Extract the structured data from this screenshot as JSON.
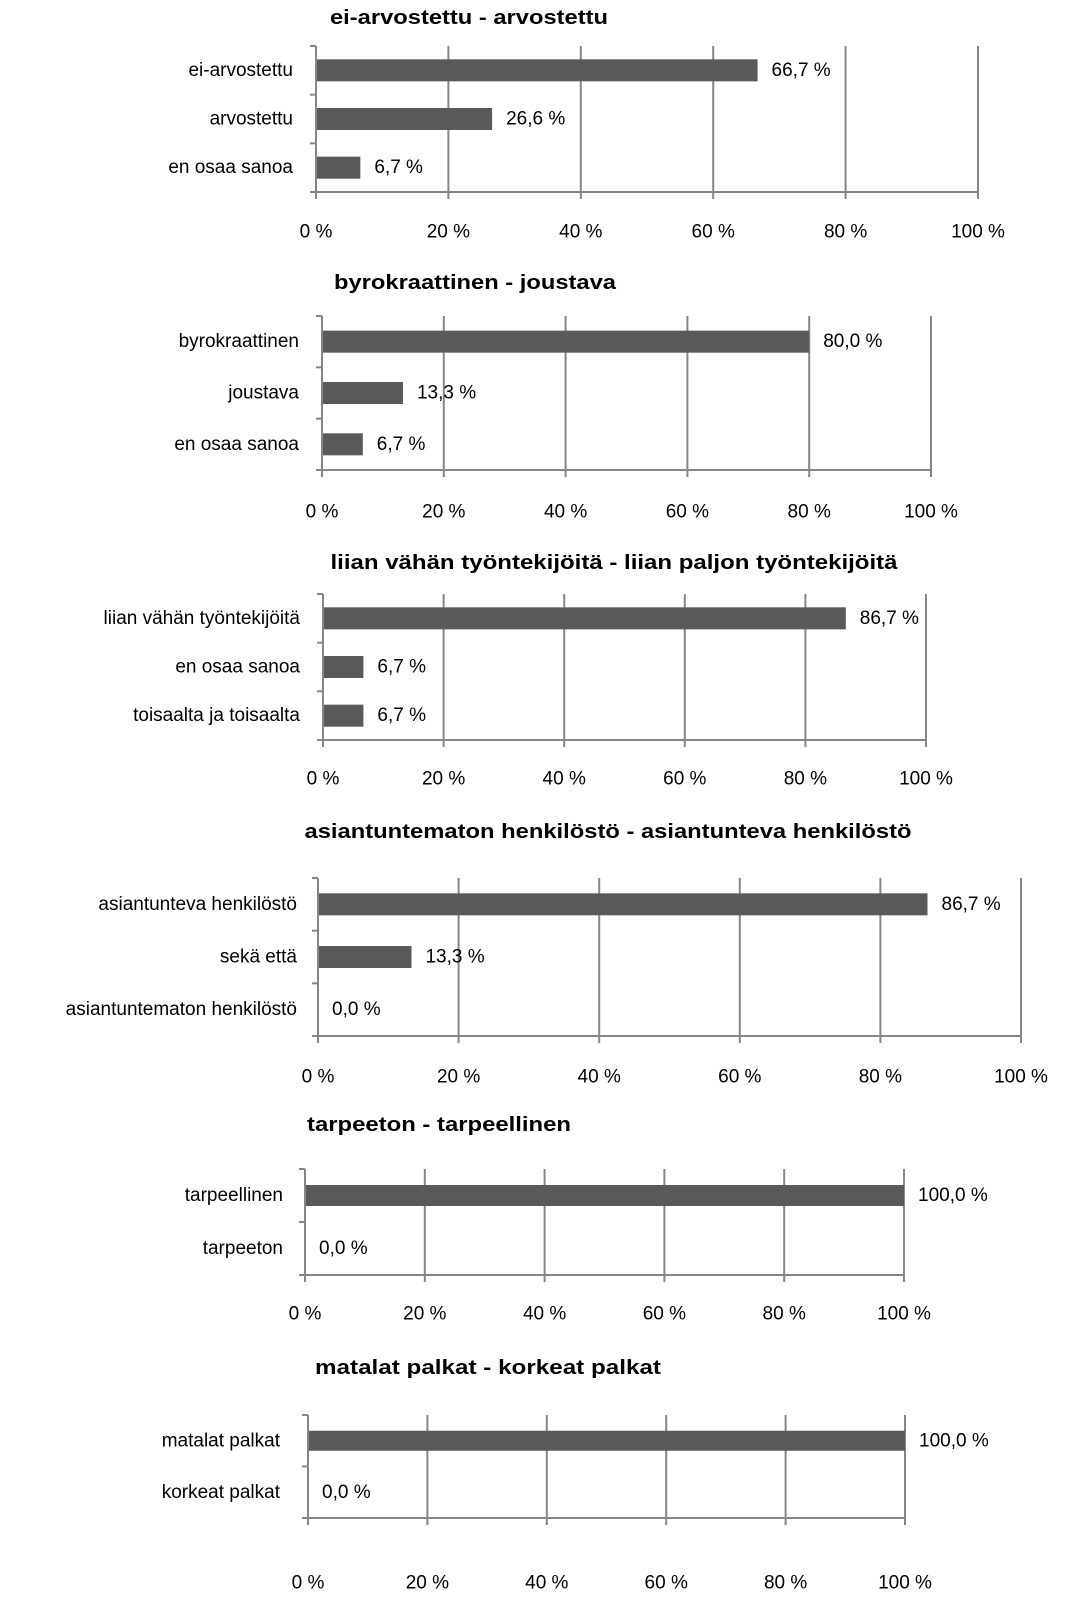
{
  "colors": {
    "bar": "#595959",
    "grid": "#868686"
  },
  "chart_data": [
    {
      "type": "bar",
      "orientation": "horizontal",
      "title": "ei-arvostettu - arvostettu",
      "categories": [
        "ei-arvostettu",
        "arvostettu",
        "en osaa sanoa"
      ],
      "values": [
        66.7,
        26.6,
        6.7
      ],
      "data_labels": [
        "66,7 %",
        "26,6 %",
        "6,7 %"
      ],
      "xlim": [
        0,
        100
      ],
      "x_ticks": [
        "0 %",
        "20 %",
        "40 %",
        "60 %",
        "80 %",
        "100 %"
      ],
      "grid": true,
      "legend": "none"
    },
    {
      "type": "bar",
      "orientation": "horizontal",
      "title": "byrokraattinen - joustava",
      "categories": [
        "byrokraattinen",
        "joustava",
        "en osaa sanoa"
      ],
      "values": [
        80.0,
        13.3,
        6.7
      ],
      "data_labels": [
        "80,0 %",
        "13,3 %",
        "6,7 %"
      ],
      "xlim": [
        0,
        100
      ],
      "x_ticks": [
        "0 %",
        "20 %",
        "40 %",
        "60 %",
        "80 %",
        "100 %"
      ],
      "grid": true,
      "legend": "none"
    },
    {
      "type": "bar",
      "orientation": "horizontal",
      "title": "liian vähän työntekijöitä - liian paljon työntekijöitä",
      "categories": [
        "liian vähän työntekijöitä",
        "en osaa sanoa",
        "toisaalta ja toisaalta"
      ],
      "values": [
        86.7,
        6.7,
        6.7
      ],
      "data_labels": [
        "86,7 %",
        "6,7 %",
        "6,7 %"
      ],
      "xlim": [
        0,
        100
      ],
      "x_ticks": [
        "0 %",
        "20 %",
        "40 %",
        "60 %",
        "80 %",
        "100 %"
      ],
      "grid": true,
      "legend": "none"
    },
    {
      "type": "bar",
      "orientation": "horizontal",
      "title": "asiantuntematon henkilöstö - asiantunteva henkilöstö",
      "categories": [
        "asiantunteva henkilöstö",
        "sekä että",
        "asiantuntematon henkilöstö"
      ],
      "values": [
        86.7,
        13.3,
        0.0
      ],
      "data_labels": [
        "86,7 %",
        "13,3 %",
        "0,0 %"
      ],
      "xlim": [
        0,
        100
      ],
      "x_ticks": [
        "0 %",
        "20 %",
        "40 %",
        "60 %",
        "80 %",
        "100 %"
      ],
      "grid": true,
      "legend": "none"
    },
    {
      "type": "bar",
      "orientation": "horizontal",
      "title": "tarpeeton - tarpeellinen",
      "categories": [
        "tarpeellinen",
        "tarpeeton"
      ],
      "values": [
        100.0,
        0.0
      ],
      "data_labels": [
        "100,0 %",
        "0,0 %"
      ],
      "xlim": [
        0,
        100
      ],
      "x_ticks": [
        "0 %",
        "20 %",
        "40 %",
        "60 %",
        "80 %",
        "100 %"
      ],
      "grid": true,
      "legend": "none"
    },
    {
      "type": "bar",
      "orientation": "horizontal",
      "title": "matalat palkat - korkeat palkat",
      "categories": [
        "matalat palkat",
        "korkeat palkat"
      ],
      "values": [
        100.0,
        0.0
      ],
      "data_labels": [
        "100,0 %",
        "0,0 %"
      ],
      "xlim": [
        0,
        100
      ],
      "x_ticks": [
        "0 %",
        "20 %",
        "40 %",
        "60 %",
        "80 %",
        "100 %"
      ],
      "grid": true,
      "legend": "none"
    }
  ]
}
